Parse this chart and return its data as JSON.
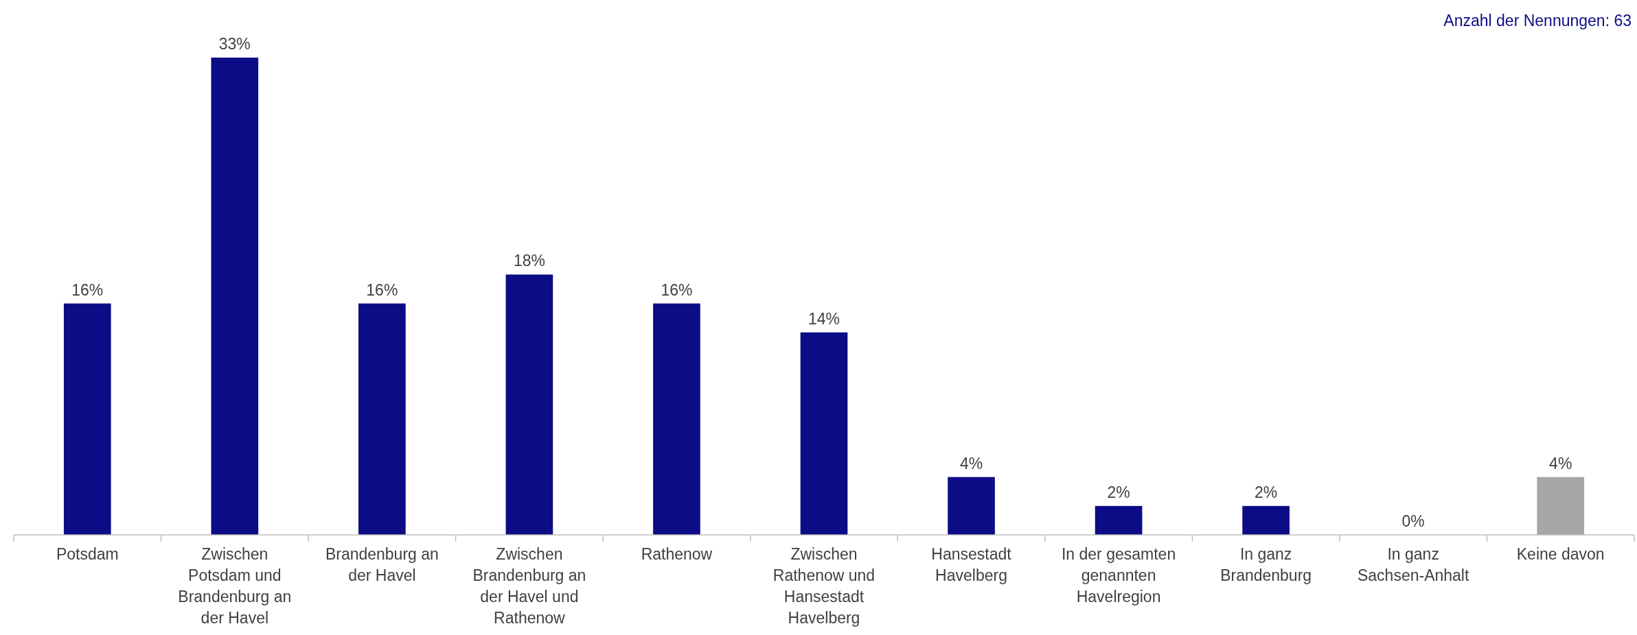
{
  "chart_data": {
    "type": "bar",
    "annotations": [
      "Anzahl der Nennungen: 63"
    ],
    "categories": [
      "Potsdam",
      "Zwischen Potsdam und Brandenburg an der Havel",
      "Brandenburg an der Havel",
      "Zwischen Brandenburg an der Havel und Rathenow",
      "Rathenow",
      "Zwischen Rathenow und Hansestadt Havelberg",
      "Hansestadt Havelberg",
      "In der gesamten genannten Havelregion",
      "In ganz Brandenburg",
      "In ganz Sachsen-Anhalt",
      "Keine davon"
    ],
    "values": [
      16,
      33,
      16,
      18,
      16,
      14,
      4,
      2,
      2,
      0,
      4
    ],
    "value_labels": [
      "16%",
      "33%",
      "16%",
      "18%",
      "16%",
      "14%",
      "4%",
      "2%",
      "2%",
      "0%",
      "4%"
    ],
    "colors": [
      "#0c0c87",
      "#0c0c87",
      "#0c0c87",
      "#0c0c87",
      "#0c0c87",
      "#0c0c87",
      "#0c0c87",
      "#0c0c87",
      "#0c0c87",
      "#0c0c87",
      "#a6a6a6"
    ]
  }
}
